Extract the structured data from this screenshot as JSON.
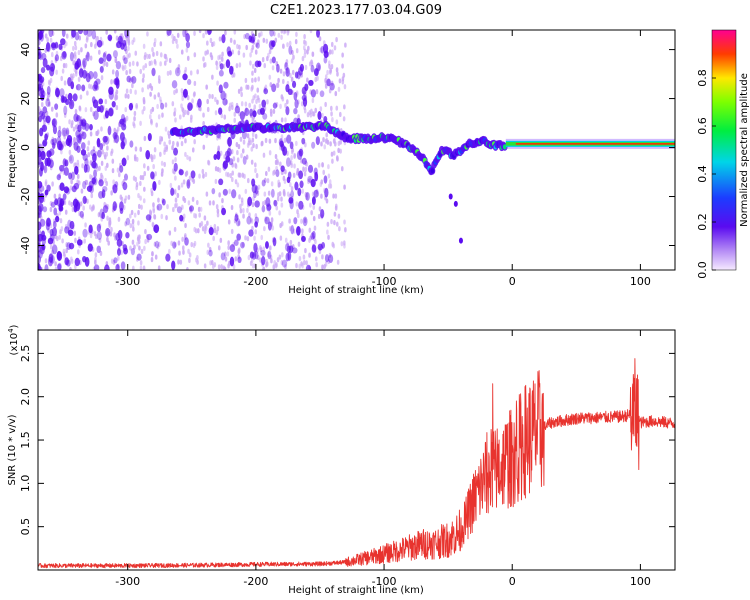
{
  "title": "C2E1.2023.177.03.04.G09",
  "colors": {
    "snr_line": "#e8332e",
    "spectrogram_main": "#5a0bf0",
    "spectrogram_faint": "#c9a6f5"
  },
  "chart_data": [
    {
      "type": "heatmap",
      "xlabel": "Height of straight line (km)",
      "ylabel": "Frequency (Hz)",
      "xlim": [
        -370,
        127
      ],
      "ylim": [
        -50,
        48
      ],
      "x_ticks": [
        -300,
        -200,
        -100,
        0,
        100
      ],
      "x_tick_labels": [
        "-300",
        "-200",
        "-100",
        "0",
        "100"
      ],
      "y_ticks": [
        -40,
        -20,
        0,
        20,
        40
      ],
      "y_tick_labels": [
        "-40",
        "-20",
        "0",
        "20",
        "40"
      ],
      "grid": false,
      "colorbar": {
        "label": "Normalized spectral amplitude",
        "range": [
          0,
          1
        ],
        "ticks": [
          0,
          0.2,
          0.4,
          0.6,
          0.8
        ],
        "tick_labels": [
          "0.0",
          "0.2",
          "0.4",
          "0.6",
          "0.8"
        ],
        "colormap": "rainbow (purple-blue-cyan-green-yellow-red-magenta)"
      },
      "signal_trace": {
        "x": [
          -265,
          -240,
          -220,
          -200,
          -180,
          -160,
          -145,
          -130,
          -115,
          -100,
          -90,
          -80,
          -70,
          -63,
          -55,
          -45,
          -35,
          -25,
          -15,
          0,
          30,
          60,
          95,
          127
        ],
        "freq": [
          6,
          7,
          7.5,
          8,
          8,
          8.5,
          8.5,
          4,
          3.5,
          4,
          3,
          0,
          -4,
          -10,
          -1,
          -3,
          1,
          3,
          1,
          0.5,
          1,
          1.2,
          1.2,
          1.5
        ]
      },
      "noise_region": {
        "x_start": -370,
        "x_end": -140,
        "freq_range": [
          -50,
          48
        ]
      }
    },
    {
      "type": "line",
      "xlabel": "Height of straight line (km)",
      "ylabel": "SNR (10 * v/v)",
      "y_scale_label": "(x10",
      "y_scale_exponent": "4",
      "y_scale_suffix": ")",
      "xlim": [
        -370,
        127
      ],
      "ylim": [
        0,
        27700
      ],
      "x_ticks": [
        -300,
        -200,
        -100,
        0,
        100
      ],
      "x_tick_labels": [
        "-300",
        "-200",
        "-100",
        "0",
        "100"
      ],
      "y_ticks": [
        5000,
        10000,
        15000,
        20000,
        25000
      ],
      "y_tick_labels": [
        "0.5",
        "1.0",
        "1.5",
        "2.0",
        "2.5"
      ],
      "grid": false,
      "series": [
        {
          "x": [
            -370,
            -300,
            -250,
            -200,
            -150,
            -130,
            -110,
            -90,
            -70,
            -60,
            -50,
            -40,
            -30,
            -20,
            -10,
            0,
            10,
            20,
            30,
            50,
            70,
            85,
            92,
            96,
            100,
            110,
            127
          ],
          "values": [
            500,
            500,
            550,
            650,
            700,
            900,
            1500,
            2200,
            3000,
            3100,
            3500,
            4500,
            8000,
            11000,
            12000,
            13000,
            15000,
            16000,
            17000,
            17500,
            17600,
            17700,
            17900,
            18500,
            17000,
            17200,
            16900
          ]
        }
      ]
    }
  ]
}
